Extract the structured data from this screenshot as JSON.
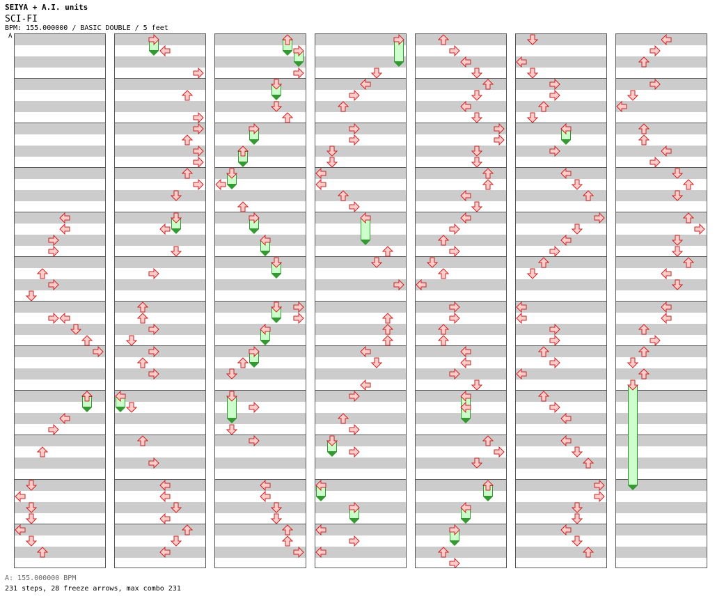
{
  "header": {
    "artist": "SEIYA + A.I. units",
    "title": "SCI-FI",
    "subline": "BPM: 155.000000 / BASIC DOUBLE / 5 feet",
    "bpm_marker": "A"
  },
  "footer": {
    "bpm": "A: 155.000000 BPM",
    "stats": "231 steps, 28 freeze arrows, max combo 231"
  },
  "chart_data": {
    "type": "step-chart",
    "mode": "BASIC DOUBLE",
    "bpm": 155,
    "difficulty_feet": 5,
    "lanes": 8,
    "lane_order": [
      "left",
      "down",
      "up",
      "right",
      "left",
      "down",
      "up",
      "right"
    ],
    "rows_per_column": 48,
    "rows_per_measure": 4,
    "columns": [
      {
        "notes": [
          [
            16,
            4
          ],
          [
            17,
            4
          ],
          [
            18,
            3
          ],
          [
            19,
            3
          ],
          [
            21,
            2
          ],
          [
            22,
            3
          ],
          [
            23,
            1
          ],
          [
            25,
            3
          ],
          [
            25,
            4
          ],
          [
            26,
            5
          ],
          [
            27,
            6
          ],
          [
            28,
            7
          ],
          [
            32,
            6
          ],
          [
            34,
            4
          ],
          [
            35,
            3
          ],
          [
            37,
            2
          ],
          [
            40,
            1
          ],
          [
            41,
            0
          ],
          [
            42,
            1
          ],
          [
            43,
            1
          ],
          [
            44,
            0
          ],
          [
            45,
            1
          ],
          [
            46,
            2
          ]
        ],
        "freezes": [
          [
            32,
            33,
            6
          ]
        ]
      },
      {
        "notes": [
          [
            1,
            4
          ],
          [
            3,
            7
          ],
          [
            5,
            6
          ],
          [
            7,
            7
          ],
          [
            8,
            7
          ],
          [
            9,
            6
          ],
          [
            10,
            7
          ],
          [
            11,
            7
          ],
          [
            12,
            6
          ],
          [
            13,
            7
          ],
          [
            14,
            5
          ],
          [
            17,
            4
          ],
          [
            19,
            5
          ],
          [
            21,
            3
          ],
          [
            24,
            2
          ],
          [
            25,
            2
          ],
          [
            26,
            3
          ],
          [
            27,
            1
          ],
          [
            28,
            3
          ],
          [
            29,
            2
          ],
          [
            30,
            3
          ],
          [
            33,
            1
          ],
          [
            36,
            2
          ],
          [
            38,
            3
          ],
          [
            40,
            4
          ],
          [
            41,
            4
          ],
          [
            42,
            5
          ],
          [
            43,
            4
          ],
          [
            44,
            6
          ],
          [
            45,
            5
          ],
          [
            46,
            4
          ]
        ],
        "freezes": [
          [
            0,
            1,
            3
          ],
          [
            16,
            17,
            5
          ],
          [
            32,
            33,
            0
          ]
        ]
      },
      {
        "notes": [
          [
            3,
            7
          ],
          [
            6,
            5
          ],
          [
            7,
            6
          ],
          [
            13,
            0
          ],
          [
            15,
            2
          ],
          [
            24,
            7
          ],
          [
            25,
            7
          ],
          [
            29,
            2
          ],
          [
            30,
            1
          ],
          [
            33,
            3
          ],
          [
            35,
            1
          ],
          [
            36,
            3
          ],
          [
            40,
            4
          ],
          [
            41,
            4
          ],
          [
            42,
            5
          ],
          [
            43,
            5
          ],
          [
            44,
            6
          ],
          [
            45,
            6
          ],
          [
            46,
            7
          ]
        ],
        "freezes": [
          [
            0,
            1,
            6
          ],
          [
            1,
            2,
            7
          ],
          [
            4,
            5,
            5
          ],
          [
            8,
            9,
            3
          ],
          [
            10,
            11,
            2
          ],
          [
            12,
            13,
            1
          ],
          [
            16,
            17,
            3
          ],
          [
            18,
            19,
            4
          ],
          [
            20,
            21,
            5
          ],
          [
            24,
            25,
            5
          ],
          [
            26,
            27,
            4
          ],
          [
            28,
            29,
            3
          ],
          [
            32,
            34,
            1
          ]
        ]
      },
      {
        "notes": [
          [
            3,
            5
          ],
          [
            4,
            4
          ],
          [
            5,
            3
          ],
          [
            6,
            2
          ],
          [
            8,
            3
          ],
          [
            9,
            3
          ],
          [
            10,
            1
          ],
          [
            11,
            1
          ],
          [
            12,
            0
          ],
          [
            13,
            0
          ],
          [
            14,
            2
          ],
          [
            15,
            3
          ],
          [
            19,
            6
          ],
          [
            20,
            5
          ],
          [
            22,
            7
          ],
          [
            25,
            6
          ],
          [
            26,
            6
          ],
          [
            27,
            6
          ],
          [
            28,
            4
          ],
          [
            29,
            5
          ],
          [
            31,
            4
          ],
          [
            32,
            3
          ],
          [
            34,
            2
          ],
          [
            35,
            3
          ],
          [
            37,
            3
          ],
          [
            44,
            0
          ],
          [
            45,
            3
          ],
          [
            46,
            0
          ]
        ],
        "freezes": [
          [
            0,
            2,
            7
          ],
          [
            16,
            18,
            4
          ],
          [
            36,
            37,
            1
          ],
          [
            40,
            41,
            0
          ],
          [
            42,
            43,
            3
          ]
        ]
      },
      {
        "notes": [
          [
            0,
            2
          ],
          [
            1,
            3
          ],
          [
            2,
            4
          ],
          [
            3,
            5
          ],
          [
            4,
            6
          ],
          [
            5,
            5
          ],
          [
            6,
            4
          ],
          [
            7,
            5
          ],
          [
            8,
            7
          ],
          [
            9,
            7
          ],
          [
            10,
            5
          ],
          [
            11,
            5
          ],
          [
            12,
            6
          ],
          [
            13,
            6
          ],
          [
            14,
            4
          ],
          [
            15,
            5
          ],
          [
            16,
            4
          ],
          [
            17,
            3
          ],
          [
            18,
            2
          ],
          [
            19,
            3
          ],
          [
            20,
            1
          ],
          [
            21,
            2
          ],
          [
            22,
            0
          ],
          [
            24,
            3
          ],
          [
            25,
            3
          ],
          [
            26,
            2
          ],
          [
            27,
            2
          ],
          [
            28,
            4
          ],
          [
            29,
            4
          ],
          [
            30,
            3
          ],
          [
            31,
            5
          ],
          [
            33,
            4
          ],
          [
            36,
            6
          ],
          [
            37,
            7
          ],
          [
            38,
            5
          ],
          [
            47,
            3
          ],
          [
            46,
            2
          ]
        ],
        "freezes": [
          [
            32,
            34,
            4
          ],
          [
            40,
            41,
            6
          ],
          [
            42,
            43,
            4
          ],
          [
            44,
            45,
            3
          ]
        ]
      },
      {
        "notes": [
          [
            0,
            1
          ],
          [
            2,
            0
          ],
          [
            3,
            1
          ],
          [
            4,
            3
          ],
          [
            5,
            3
          ],
          [
            6,
            2
          ],
          [
            7,
            1
          ],
          [
            8,
            4
          ],
          [
            10,
            3
          ],
          [
            12,
            4
          ],
          [
            13,
            5
          ],
          [
            14,
            6
          ],
          [
            16,
            7
          ],
          [
            17,
            5
          ],
          [
            18,
            4
          ],
          [
            19,
            3
          ],
          [
            20,
            2
          ],
          [
            21,
            1
          ],
          [
            24,
            0
          ],
          [
            25,
            0
          ],
          [
            26,
            3
          ],
          [
            27,
            3
          ],
          [
            28,
            2
          ],
          [
            29,
            3
          ],
          [
            30,
            0
          ],
          [
            32,
            2
          ],
          [
            33,
            3
          ],
          [
            34,
            4
          ],
          [
            36,
            4
          ],
          [
            37,
            5
          ],
          [
            38,
            6
          ],
          [
            40,
            7
          ],
          [
            41,
            7
          ],
          [
            42,
            5
          ],
          [
            43,
            5
          ],
          [
            44,
            4
          ],
          [
            45,
            5
          ],
          [
            46,
            6
          ]
        ],
        "freezes": [
          [
            8,
            9,
            4
          ]
        ]
      },
      {
        "notes": [
          [
            0,
            4
          ],
          [
            1,
            3
          ],
          [
            2,
            2
          ],
          [
            4,
            3
          ],
          [
            5,
            1
          ],
          [
            6,
            0
          ],
          [
            8,
            2
          ],
          [
            9,
            2
          ],
          [
            10,
            4
          ],
          [
            11,
            3
          ],
          [
            12,
            5
          ],
          [
            13,
            6
          ],
          [
            14,
            5
          ],
          [
            16,
            6
          ],
          [
            17,
            7
          ],
          [
            18,
            5
          ],
          [
            19,
            5
          ],
          [
            20,
            6
          ],
          [
            21,
            4
          ],
          [
            22,
            5
          ],
          [
            24,
            4
          ],
          [
            25,
            4
          ],
          [
            26,
            2
          ],
          [
            27,
            3
          ],
          [
            28,
            2
          ],
          [
            29,
            1
          ],
          [
            30,
            2
          ]
        ],
        "freezes": [
          [
            31,
            40,
            1
          ]
        ]
      }
    ]
  }
}
